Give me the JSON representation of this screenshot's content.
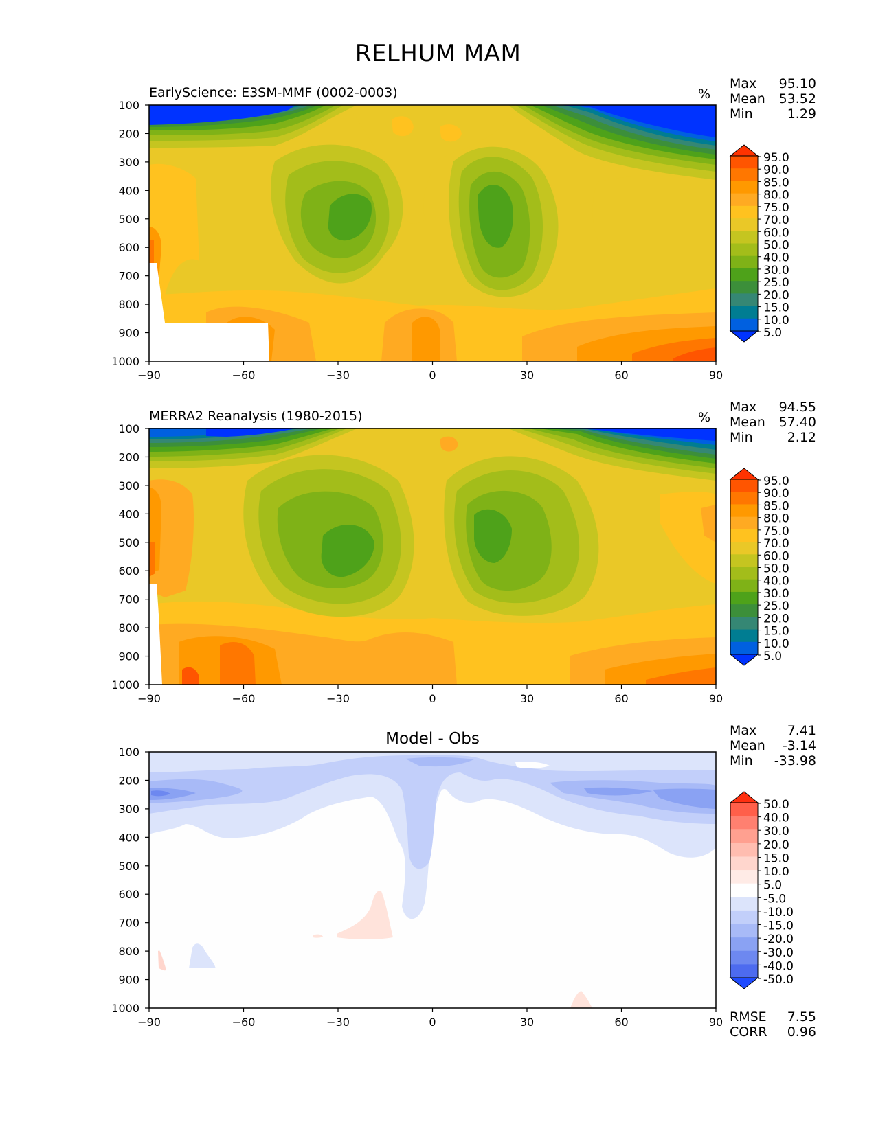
{
  "page": {
    "title": "RELHUM MAM"
  },
  "chart_data": [
    {
      "type": "heatmap",
      "title": "EarlyScience: E3SM-MMF (0002-0003)",
      "units": "%",
      "stats": [
        {
          "label": "Max",
          "value": "95.10"
        },
        {
          "label": "Mean",
          "value": "53.52"
        },
        {
          "label": "Min",
          "value": "1.29"
        }
      ],
      "x_ticks": [
        "−90",
        "−60",
        "−30",
        "0",
        "30",
        "60",
        "90"
      ],
      "y_ticks": [
        "100",
        "200",
        "300",
        "400",
        "500",
        "600",
        "700",
        "800",
        "900",
        "1000"
      ],
      "xlim": [
        -90,
        90
      ],
      "ylim": [
        1000,
        100
      ],
      "colorbar": {
        "levels": [
          "95.0",
          "90.0",
          "85.0",
          "80.0",
          "75.0",
          "70.0",
          "60.0",
          "50.0",
          "40.0",
          "30.0",
          "25.0",
          "20.0",
          "15.0",
          "10.0",
          "5.0"
        ],
        "colors": [
          "#ff3300",
          "#ff5500",
          "#ff7700",
          "#ff9900",
          "#ffaa22",
          "#ffc21f",
          "#eac827",
          "#c5c520",
          "#a3bd1a",
          "#7fb217",
          "#4ea21a",
          "#3c8f3a",
          "#358774",
          "#007d92",
          "#0060e0",
          "#0033ff"
        ]
      },
      "missing_region": "white (below surface)"
    },
    {
      "type": "heatmap",
      "title": "MERRA2 Reanalysis (1980-2015)",
      "units": "%",
      "stats": [
        {
          "label": "Max",
          "value": "94.55"
        },
        {
          "label": "Mean",
          "value": "57.40"
        },
        {
          "label": "Min",
          "value": "2.12"
        }
      ],
      "x_ticks": [
        "−90",
        "−60",
        "−30",
        "0",
        "30",
        "60",
        "90"
      ],
      "y_ticks": [
        "100",
        "200",
        "300",
        "400",
        "500",
        "600",
        "700",
        "800",
        "900",
        "1000"
      ],
      "xlim": [
        -90,
        90
      ],
      "ylim": [
        1000,
        100
      ],
      "colorbar": {
        "levels": [
          "95.0",
          "90.0",
          "85.0",
          "80.0",
          "75.0",
          "70.0",
          "60.0",
          "50.0",
          "40.0",
          "30.0",
          "25.0",
          "20.0",
          "15.0",
          "10.0",
          "5.0"
        ],
        "colors": [
          "#ff3300",
          "#ff5500",
          "#ff7700",
          "#ff9900",
          "#ffaa22",
          "#ffc21f",
          "#eac827",
          "#c5c520",
          "#a3bd1a",
          "#7fb217",
          "#4ea21a",
          "#3c8f3a",
          "#358774",
          "#007d92",
          "#0060e0",
          "#0033ff"
        ]
      }
    },
    {
      "type": "heatmap",
      "title": "Model - Obs",
      "stats": [
        {
          "label": "Max",
          "value": "7.41"
        },
        {
          "label": "Mean",
          "value": "-3.14"
        },
        {
          "label": "Min",
          "value": "-33.98"
        }
      ],
      "extra_stats": [
        {
          "label": "RMSE",
          "value": "7.55"
        },
        {
          "label": "CORR",
          "value": "0.96"
        }
      ],
      "x_ticks": [
        "−90",
        "−60",
        "−30",
        "0",
        "30",
        "60",
        "90"
      ],
      "y_ticks": [
        "100",
        "200",
        "300",
        "400",
        "500",
        "600",
        "700",
        "800",
        "900",
        "1000"
      ],
      "xlim": [
        -90,
        90
      ],
      "ylim": [
        1000,
        100
      ],
      "colorbar": {
        "levels": [
          "50.0",
          "40.0",
          "30.0",
          "20.0",
          "15.0",
          "10.0",
          "5.0",
          "-5.0",
          "-10.0",
          "-15.0",
          "-20.0",
          "-30.0",
          "-40.0",
          "-50.0"
        ],
        "colors": [
          "#ff3010",
          "#ff5f4a",
          "#ff8070",
          "#ffa090",
          "#ffbdb0",
          "#ffd6cd",
          "#ffebe6",
          "#ffffff",
          "#dce4fb",
          "#c2cffa",
          "#a8baf7",
          "#8aa2f3",
          "#6d88f0",
          "#4d6bef",
          "#1f4bff"
        ]
      }
    }
  ]
}
